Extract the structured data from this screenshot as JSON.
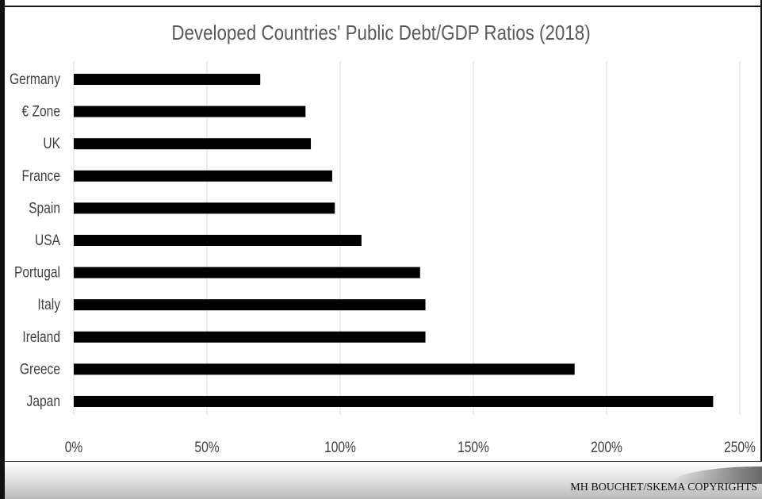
{
  "chart_data": {
    "type": "bar",
    "orientation": "horizontal",
    "title": "Developed Countries' Public Debt/GDP Ratios (2018)",
    "categories": [
      "Germany",
      "€ Zone",
      "UK",
      "France",
      "Spain",
      "USA",
      "Portugal",
      "Italy",
      "Ireland",
      "Greece",
      "Japan"
    ],
    "values": [
      70,
      87,
      89,
      97,
      98,
      108,
      130,
      132,
      132,
      188,
      240
    ],
    "unit": "%",
    "xlim": [
      0,
      250
    ],
    "ticks": [
      "0%",
      "50%",
      "100%",
      "150%",
      "200%",
      "250%"
    ],
    "tick_values": [
      0,
      50,
      100,
      150,
      200,
      250
    ],
    "grid": "vertical",
    "legend": "none",
    "bar_color": "#000000",
    "grid_color": "#d9d9d9",
    "label_color": "#404040"
  },
  "footer": {
    "copyright": "MH BOUCHET/SKEMA COPYRIGHTS"
  }
}
